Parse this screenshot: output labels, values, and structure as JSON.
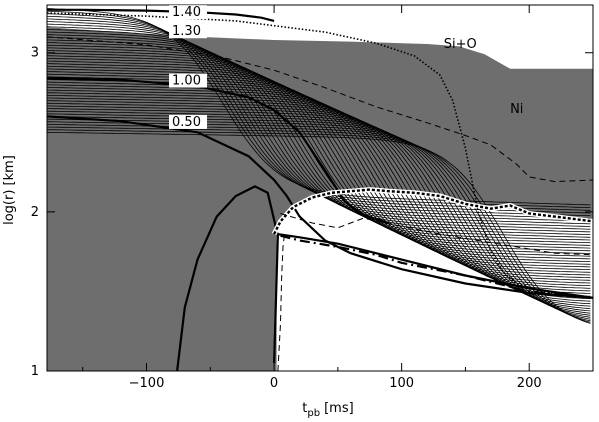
{
  "chart_data": {
    "type": "line",
    "xlabel": "t",
    "xlabel_sub": "pb",
    "xlabel_unit": "[ms]",
    "ylabel": "log(r) [km]",
    "xlim": [
      -178,
      250
    ],
    "ylim": [
      1.0,
      3.3
    ],
    "x_ticks": [
      -100,
      0,
      100,
      200
    ],
    "y_ticks": [
      1,
      2,
      3
    ],
    "grid": false,
    "colors": {
      "shade": "#6e6e6e",
      "line": "#000000",
      "label_bg": "#ffffff"
    },
    "mass_labels": [
      {
        "text": "1.40",
        "t": -80,
        "logr": 3.23
      },
      {
        "text": "1.30",
        "t": -80,
        "logr": 3.11
      },
      {
        "text": "1.00",
        "t": -80,
        "logr": 2.8
      },
      {
        "text": "0.50",
        "t": -80,
        "logr": 2.54
      }
    ],
    "region_labels": [
      {
        "text": "Si+O",
        "t": 133,
        "logr": 3.03
      },
      {
        "text": "Ni",
        "t": 185,
        "logr": 2.62
      }
    ],
    "series": [
      {
        "style": "thick",
        "x": [
          -178,
          -150,
          -100,
          -60,
          -30,
          -10,
          0
        ],
        "y": [
          3.27,
          3.27,
          3.265,
          3.255,
          3.24,
          3.22,
          3.2
        ]
      },
      {
        "style": "thick",
        "x": [
          -178,
          -120,
          -60,
          -20,
          0,
          20,
          40,
          55,
          70,
          90
        ],
        "y": [
          2.84,
          2.83,
          2.79,
          2.72,
          2.64,
          2.5,
          2.26,
          2.07,
          1.98,
          1.93
        ]
      },
      {
        "style": "thick",
        "x": [
          -178,
          -120,
          -60,
          -20,
          0,
          10,
          20,
          40,
          60,
          100,
          150,
          200,
          250
        ],
        "y": [
          2.6,
          2.57,
          2.5,
          2.35,
          2.2,
          2.1,
          1.97,
          1.82,
          1.74,
          1.64,
          1.55,
          1.49,
          1.46
        ]
      },
      {
        "style": "thick",
        "x": [
          -76,
          -70,
          -60,
          -45,
          -30,
          -15,
          -5,
          3
        ],
        "y": [
          1.0,
          1.4,
          1.7,
          1.97,
          2.1,
          2.16,
          2.12,
          1.85
        ]
      },
      {
        "style": "thick",
        "x": [
          0,
          3,
          20,
          50,
          80,
          100,
          150,
          200,
          250
        ],
        "y": [
          1.05,
          1.86,
          1.84,
          1.8,
          1.74,
          1.7,
          1.6,
          1.52,
          1.46
        ]
      },
      {
        "style": "thick-dashed",
        "x": [
          5,
          20,
          50,
          80,
          100,
          150,
          200,
          250
        ],
        "y": [
          1.85,
          1.82,
          1.78,
          1.73,
          1.68,
          1.6,
          1.5,
          1.46
        ]
      },
      {
        "style": "shock",
        "x": [
          0,
          5,
          15,
          30,
          45,
          60,
          75,
          90,
          110,
          130,
          150,
          170,
          185,
          200,
          220,
          240,
          250
        ],
        "y": [
          1.86,
          1.94,
          2.03,
          2.09,
          2.12,
          2.13,
          2.14,
          2.13,
          2.12,
          2.1,
          2.05,
          2.02,
          2.04,
          1.99,
          1.97,
          1.95,
          1.94
        ]
      },
      {
        "style": "dotted",
        "x": [
          -178,
          -100,
          -30,
          40,
          80,
          110,
          130,
          140,
          150,
          160,
          170,
          180,
          190,
          210,
          250
        ],
        "y": [
          3.25,
          3.23,
          3.2,
          3.13,
          3.06,
          2.98,
          2.86,
          2.7,
          2.4,
          2.0,
          1.75,
          1.62,
          1.55,
          1.5,
          1.46
        ]
      },
      {
        "style": "dashed",
        "x": [
          -178,
          -100,
          -40,
          0,
          40,
          80,
          120,
          150,
          170,
          190,
          200,
          220,
          250
        ],
        "y": [
          3.1,
          3.05,
          2.97,
          2.89,
          2.78,
          2.66,
          2.56,
          2.48,
          2.42,
          2.3,
          2.22,
          2.19,
          2.2
        ]
      },
      {
        "style": "dashed",
        "x": [
          5,
          30,
          50,
          70,
          100,
          130,
          160,
          190,
          220,
          250
        ],
        "y": [
          1.99,
          1.93,
          1.9,
          1.96,
          1.91,
          1.86,
          1.82,
          1.78,
          1.74,
          1.73
        ]
      },
      {
        "style": "dashed",
        "x": [
          3,
          5,
          6,
          7,
          8
        ],
        "y": [
          1.0,
          1.3,
          1.6,
          1.78,
          1.85
        ]
      }
    ],
    "shaded_regions": [
      {
        "name": "unshocked",
        "points": [
          [
            -178,
            3.16
          ],
          [
            -120,
            3.13
          ],
          [
            -60,
            3.1
          ],
          [
            0,
            3.08
          ],
          [
            60,
            3.07
          ],
          [
            100,
            3.06
          ],
          [
            120,
            3.055
          ],
          [
            145,
            3.04
          ],
          [
            165,
            2.99
          ],
          [
            185,
            2.9
          ],
          [
            250,
            2.9
          ],
          [
            250,
            1.93
          ],
          [
            240,
            1.95
          ],
          [
            220,
            1.97
          ],
          [
            200,
            1.99
          ],
          [
            185,
            2.04
          ],
          [
            170,
            2.02
          ],
          [
            150,
            2.05
          ],
          [
            130,
            2.1
          ],
          [
            110,
            2.12
          ],
          [
            90,
            2.13
          ],
          [
            75,
            2.14
          ],
          [
            60,
            2.13
          ],
          [
            45,
            2.12
          ],
          [
            30,
            2.09
          ],
          [
            15,
            2.03
          ],
          [
            5,
            1.94
          ],
          [
            2,
            1.86
          ],
          [
            2,
            1.0
          ],
          [
            -178,
            1.0
          ]
        ]
      }
    ],
    "thin_radius_lines": {
      "count": 48
    }
  }
}
